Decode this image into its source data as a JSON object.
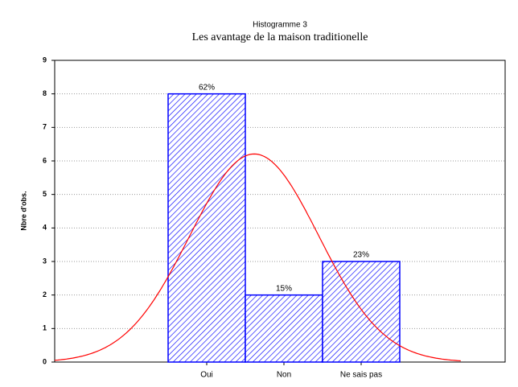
{
  "chart_data": {
    "type": "bar",
    "title": "Histogramme 3",
    "subtitle": "Les avantage de la maison traditionelle",
    "y_label": "Nbre d'obs.",
    "categories": [
      "Oui",
      "Non",
      "Ne sais pas"
    ],
    "values": [
      8,
      2,
      3
    ],
    "bar_labels": [
      "62%",
      "15%",
      "23%"
    ],
    "color": "#0000ff",
    "curve_color": "#ff0000",
    "normal_curve": true,
    "ylim": [
      0,
      9
    ],
    "yticks": [
      0,
      1,
      2,
      3,
      4,
      5,
      6,
      7,
      8,
      9
    ],
    "grid": true
  }
}
